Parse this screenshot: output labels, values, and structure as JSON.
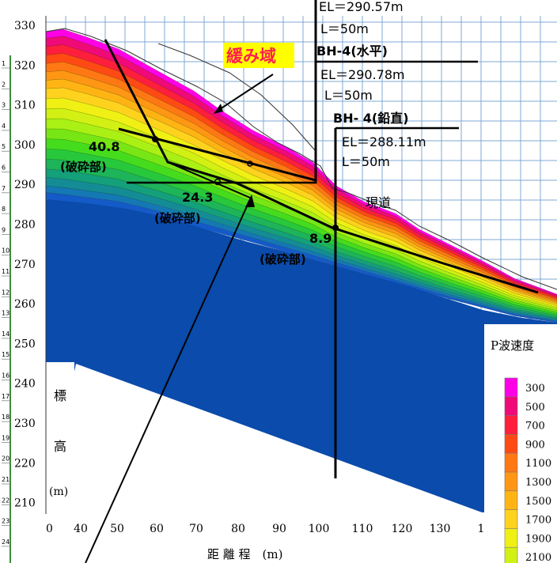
{
  "y_ticks": [
    "330",
    "320",
    "310",
    "300",
    "290",
    "280",
    "270",
    "260",
    "250",
    "240",
    "230",
    "220",
    "210"
  ],
  "x_ticks": [
    "0",
    "40",
    "50",
    "60",
    "70",
    "80",
    "90",
    "100",
    "110",
    "120",
    "130",
    "1"
  ],
  "ruler_numbers": [
    "1",
    "2",
    "3",
    "4",
    "5",
    "6",
    "7",
    "8",
    "9",
    "10",
    "11",
    "12",
    "13",
    "14",
    "15",
    "16",
    "17",
    "18",
    "19",
    "20",
    "21",
    "22",
    "23",
    "24"
  ],
  "y_axis_label": {
    "c1": "標",
    "c2": "高",
    "unit": "(m)"
  },
  "x_axis_label": "距 離 程　(m)",
  "zone_label": "緩み域",
  "boreholes": [
    {
      "name": "",
      "el": "EL＝290.57m",
      "len": "L＝50m"
    },
    {
      "name": "BH-4(水平)",
      "el": "EL＝290.78m",
      "len": "L＝50m"
    },
    {
      "name": "BH- 4(鉛直)",
      "el": "EL＝288.11m",
      "len": "L＝50m"
    }
  ],
  "fracture_zones": [
    {
      "value": "40.8",
      "label": "(破砕部)"
    },
    {
      "value": "24.3",
      "label": "(破砕部)"
    },
    {
      "value": "8.9",
      "label": "(破砕部)"
    }
  ],
  "road_label": "現道",
  "legend": {
    "title": "P波速度",
    "items": [
      {
        "label": "300",
        "color": "#ff00e6"
      },
      {
        "label": "500",
        "color": "#f00a78"
      },
      {
        "label": "700",
        "color": "#ff1e3c"
      },
      {
        "label": "900",
        "color": "#ff4a14"
      },
      {
        "label": "1100",
        "color": "#ff7814"
      },
      {
        "label": "1300",
        "color": "#ff9614"
      },
      {
        "label": "1500",
        "color": "#ffb414"
      },
      {
        "label": "1700",
        "color": "#ffd21e"
      },
      {
        "label": "1900",
        "color": "#f0f014"
      },
      {
        "label": "2100",
        "color": "#d2f014"
      }
    ]
  },
  "colors": {
    "bedrock": "#0a4bab",
    "grid": "#7fa9d4",
    "highlight": "#ffff00",
    "accent_red": "#ff1e50"
  }
}
